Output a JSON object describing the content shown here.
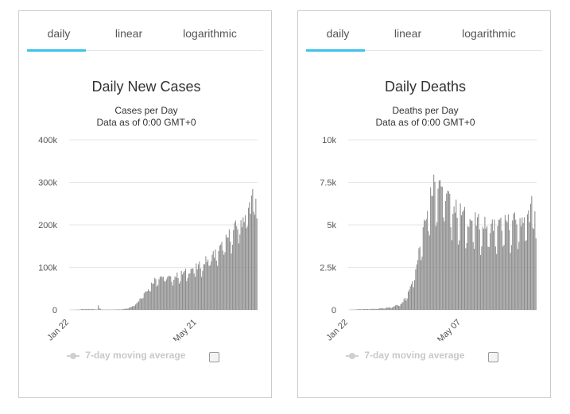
{
  "panels": [
    {
      "tabs": [
        "daily",
        "linear",
        "logarithmic"
      ],
      "active_tab": "daily",
      "legend_label": "7-day moving average"
    },
    {
      "tabs": [
        "daily",
        "linear",
        "logarithmic"
      ],
      "active_tab": "daily",
      "legend_label": "7-day moving average"
    }
  ],
  "colors": {
    "bar": "#8c8c8c",
    "grid": "#e6e6e6",
    "accent": "#3fc2ea",
    "text": "#333333"
  },
  "chart_data": [
    {
      "type": "bar",
      "title": "Daily New Cases",
      "subtitle_1": "Cases per Day",
      "subtitle_2": "Data as of 0:00 GMT+0",
      "ylim": [
        0,
        400000
      ],
      "y_ticks": [
        0,
        100000,
        200000,
        300000,
        400000
      ],
      "y_tick_labels": [
        "0",
        "100k",
        "200k",
        "300k",
        "400k"
      ],
      "x_tick_labels": [
        "Jan 22",
        "May 21"
      ],
      "x_tick_index": [
        0,
        120
      ],
      "grid": true,
      "keypoints": [
        [
          0,
          0
        ],
        [
          10,
          800
        ],
        [
          12,
          2500
        ],
        [
          14,
          1500
        ],
        [
          20,
          2000
        ],
        [
          26,
          1000
        ],
        [
          27,
          15000
        ],
        [
          28,
          4000
        ],
        [
          30,
          800
        ],
        [
          40,
          600
        ],
        [
          50,
          1500
        ],
        [
          55,
          4000
        ],
        [
          60,
          10000
        ],
        [
          65,
          22000
        ],
        [
          70,
          40000
        ],
        [
          75,
          55000
        ],
        [
          80,
          72000
        ],
        [
          85,
          80000
        ],
        [
          90,
          78000
        ],
        [
          95,
          75000
        ],
        [
          100,
          80000
        ],
        [
          105,
          85000
        ],
        [
          110,
          90000
        ],
        [
          115,
          98000
        ],
        [
          120,
          100000
        ],
        [
          125,
          110000
        ],
        [
          130,
          120000
        ],
        [
          135,
          130000
        ],
        [
          140,
          140000
        ],
        [
          145,
          155000
        ],
        [
          150,
          175000
        ],
        [
          155,
          190000
        ],
        [
          160,
          205000
        ],
        [
          165,
          225000
        ],
        [
          170,
          250000
        ],
        [
          174,
          280000
        ],
        [
          176,
          230000
        ]
      ],
      "n": 177,
      "dip_amount": 0.2
    },
    {
      "type": "bar",
      "title": "Daily Deaths",
      "subtitle_1": "Deaths per Day",
      "subtitle_2": "Data as of 0:00 GMT+0",
      "ylim": [
        0,
        10000
      ],
      "y_ticks": [
        0,
        2500,
        5000,
        7500,
        10000
      ],
      "y_tick_labels": [
        "0",
        "2.5k",
        "5k",
        "7.5k",
        "10k"
      ],
      "x_tick_labels": [
        "Jan 22",
        "May 07"
      ],
      "x_tick_index": [
        0,
        106
      ],
      "grid": true,
      "keypoints": [
        [
          0,
          0
        ],
        [
          10,
          40
        ],
        [
          25,
          60
        ],
        [
          40,
          150
        ],
        [
          50,
          400
        ],
        [
          55,
          900
        ],
        [
          60,
          1800
        ],
        [
          65,
          3200
        ],
        [
          70,
          5000
        ],
        [
          75,
          6500
        ],
        [
          80,
          7600
        ],
        [
          85,
          7800
        ],
        [
          90,
          7000
        ],
        [
          95,
          6500
        ],
        [
          100,
          6000
        ],
        [
          105,
          5800
        ],
        [
          110,
          5500
        ],
        [
          115,
          5300
        ],
        [
          120,
          5200
        ],
        [
          130,
          5000
        ],
        [
          140,
          5000
        ],
        [
          150,
          5200
        ],
        [
          160,
          5300
        ],
        [
          170,
          5700
        ],
        [
          174,
          6800
        ],
        [
          176,
          4500
        ]
      ],
      "n": 177,
      "dip_amount": 0.3
    }
  ]
}
